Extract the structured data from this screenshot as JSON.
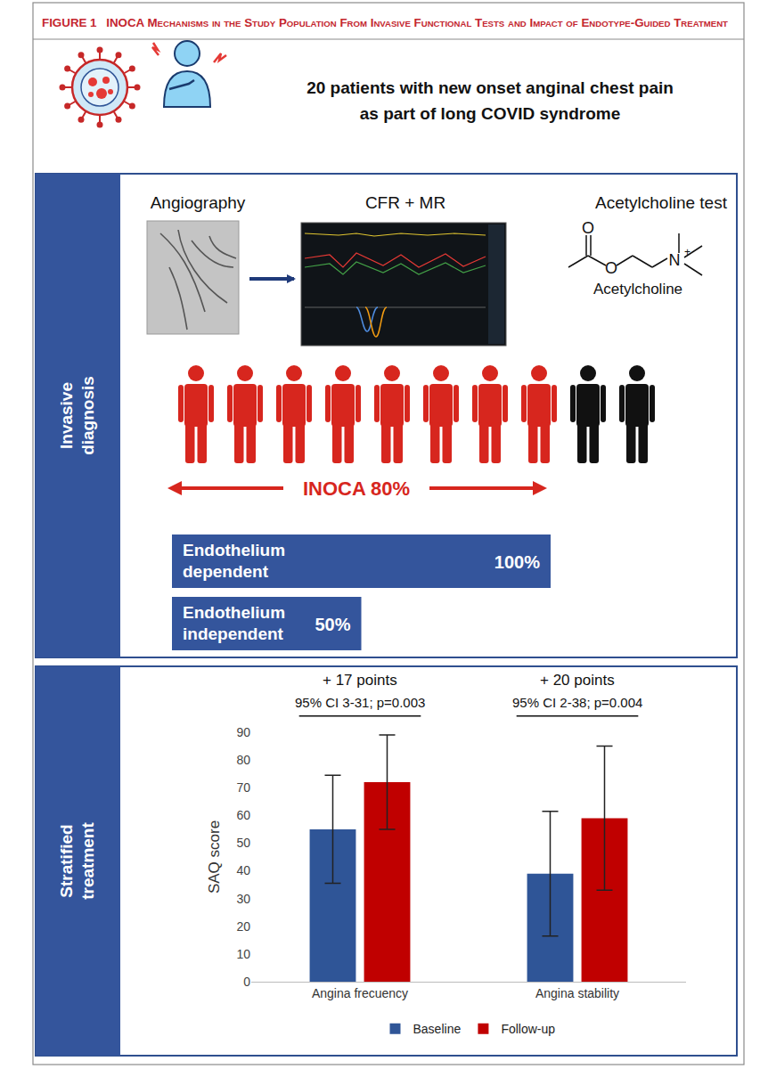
{
  "header": {
    "label": "FIGURE 1",
    "title": "INOCA Mechanisms in the Study Population From Invasive Functional Tests and Impact of Endotype-Guided Treatment",
    "cohort_lines": [
      "20 patients with new onset anginal chest pain",
      "as part of long COVID syndrome"
    ]
  },
  "diagnosis": {
    "section_lines": [
      "Invasive",
      "diagnosis"
    ],
    "tests": [
      "Angiography",
      "CFR + MR",
      "Acetylcholine test"
    ],
    "molecule": {
      "name": "Acetylcholine",
      "oxygen": "O",
      "nitrogen": "N",
      "charge": "+"
    },
    "inoca": {
      "text": "INOCA 80%",
      "percent": 80
    },
    "mechanisms": [
      {
        "lines": [
          "Endothelium",
          "dependent"
        ],
        "percent": 100,
        "percent_label": "100%"
      },
      {
        "lines": [
          "Endothelium",
          "independent"
        ],
        "percent": 50,
        "percent_label": "50%"
      }
    ]
  },
  "treatment": {
    "section_lines": [
      "Stratified",
      "treatment"
    ]
  },
  "chart_data": {
    "type": "bar",
    "categories": [
      "Angina frecuency",
      "Angina stability"
    ],
    "series": [
      {
        "name": "Baseline",
        "color": "#2f5597",
        "values": [
          55,
          39
        ],
        "errors": [
          19.5,
          22.5
        ]
      },
      {
        "name": "Follow-up",
        "color": "#c00000",
        "values": [
          72,
          59
        ],
        "errors": [
          17,
          26
        ]
      }
    ],
    "y_label": "SAQ score",
    "ylim": [
      0,
      90
    ],
    "yticks": [
      0,
      10,
      20,
      30,
      40,
      50,
      60,
      70,
      80,
      90
    ],
    "grid": false,
    "legend": "bottom",
    "annotations": [
      {
        "category": "Angina frecuency",
        "text": "+ 17 points",
        "detail": "95% CI 3-31; p=0.003"
      },
      {
        "category": "Angina stability",
        "text": "+ 20 points",
        "detail": "95% CI 2-38; p=0.004"
      }
    ]
  }
}
